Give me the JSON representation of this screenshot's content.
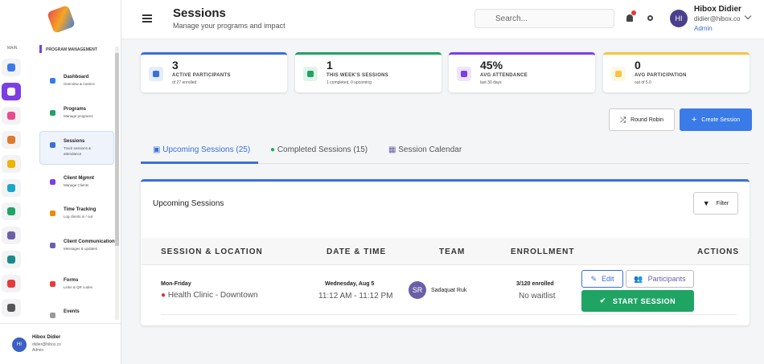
{
  "sidebar": {
    "section_label": "MAIN",
    "group": "PROGRAM MANAGEMENT",
    "items": [
      {
        "title": "Dashboard",
        "subtitle": "Overview & metrics"
      },
      {
        "title": "Programs",
        "subtitle": "Manage programs"
      },
      {
        "title": "Sessions",
        "subtitle": "Track sessions & attendance"
      },
      {
        "title": "Client Mgmnt",
        "subtitle": "Manage Clients"
      },
      {
        "title": "Time Tracking",
        "subtitle": "Log clients in / out"
      },
      {
        "title": "Client Communication",
        "subtitle": "Messages & updates"
      },
      {
        "title": "Forms",
        "subtitle": "Links & QR codes"
      },
      {
        "title": "Events",
        "subtitle": ""
      }
    ],
    "user": {
      "initials": "HI",
      "name": "Hibox Didier",
      "email": "didier@hibox.co",
      "role": "Admin"
    }
  },
  "header": {
    "title": "Sessions",
    "subtitle": "Manage your programs and impact",
    "search_placeholder": "Search...",
    "user": {
      "initials": "HI",
      "name": "Hibox Didier",
      "email": "didier@hibox.co",
      "role": "Admin"
    }
  },
  "stats": [
    {
      "value": "3",
      "label": "ACTIVE PARTICIPANTS",
      "note": "of 27 enrolled"
    },
    {
      "value": "1",
      "label": "THIS WEEK'S SESSIONS",
      "note": "1 completed, 0 upcoming"
    },
    {
      "value": "45%",
      "label": "AVG ATTENDANCE",
      "note": "last 30 days"
    },
    {
      "value": "0",
      "label": "AVG PARTICIPATION",
      "note": "out of 5.0"
    }
  ],
  "actions": {
    "round_robin": "Round Robin",
    "create": "Create Session"
  },
  "tabs": [
    "Upcoming Sessions (25)",
    "Completed Sessions (15)",
    "Session Calendar"
  ],
  "panel": {
    "title": "Upcoming Sessions",
    "filter": "Filter"
  },
  "table": {
    "columns": [
      "SESSION & LOCATION",
      "DATE & TIME",
      "TEAM",
      "ENROLLMENT",
      "ACTIONS"
    ],
    "rows": [
      {
        "session": "Mon-Friday",
        "location": "Health Clinic - Downtown",
        "date": "Wednesday, Aug 5",
        "time": "11:12 AM - 11:12 PM",
        "team_initials": "SR",
        "team_name": "Sadaquat Ruk",
        "enrollment": "3/120 enrolled",
        "waitlist": "No waitlist",
        "edit": "Edit",
        "participants": "Participants",
        "start": "START SESSION"
      }
    ]
  }
}
